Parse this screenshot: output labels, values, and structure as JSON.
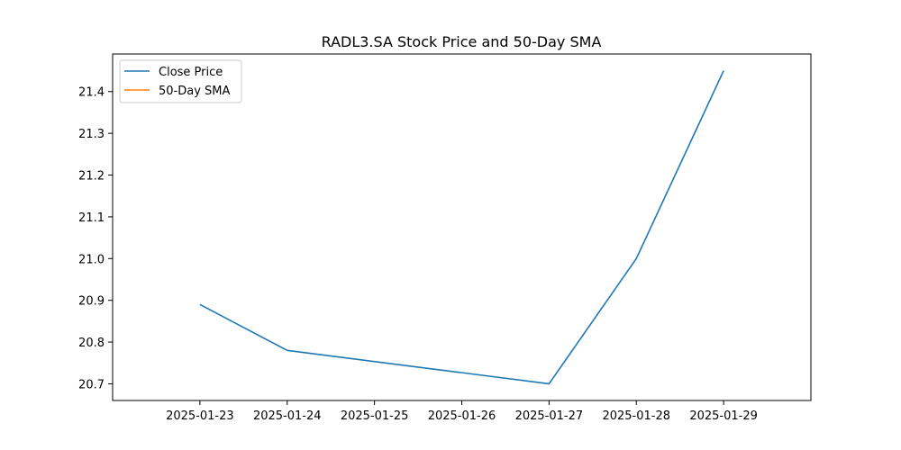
{
  "chart_data": {
    "type": "line",
    "title": "RADL3.SA Stock Price and 50-Day SMA",
    "xlabel": "",
    "ylabel": "",
    "x_ticks": [
      "2025-01-23",
      "2025-01-24",
      "2025-01-25",
      "2025-01-26",
      "2025-01-27",
      "2025-01-28",
      "2025-01-29"
    ],
    "xlim": [
      "2025-01-22",
      "2025-01-30"
    ],
    "y_ticks": [
      "20.7",
      "20.8",
      "20.9",
      "21.0",
      "21.1",
      "21.2",
      "21.3",
      "21.4"
    ],
    "ylim": [
      20.66,
      21.49
    ],
    "grid": false,
    "legend_position": "top-left",
    "series": [
      {
        "name": "Close Price",
        "color": "#1f77b4",
        "points": [
          {
            "x": "2025-01-23",
            "y": 20.89
          },
          {
            "x": "2025-01-24",
            "y": 20.78
          },
          {
            "x": "2025-01-27",
            "y": 20.7
          },
          {
            "x": "2025-01-28",
            "y": 21.0
          },
          {
            "x": "2025-01-29",
            "y": 21.45
          }
        ]
      },
      {
        "name": "50-Day SMA",
        "color": "#ff7f0e",
        "points": []
      }
    ]
  }
}
